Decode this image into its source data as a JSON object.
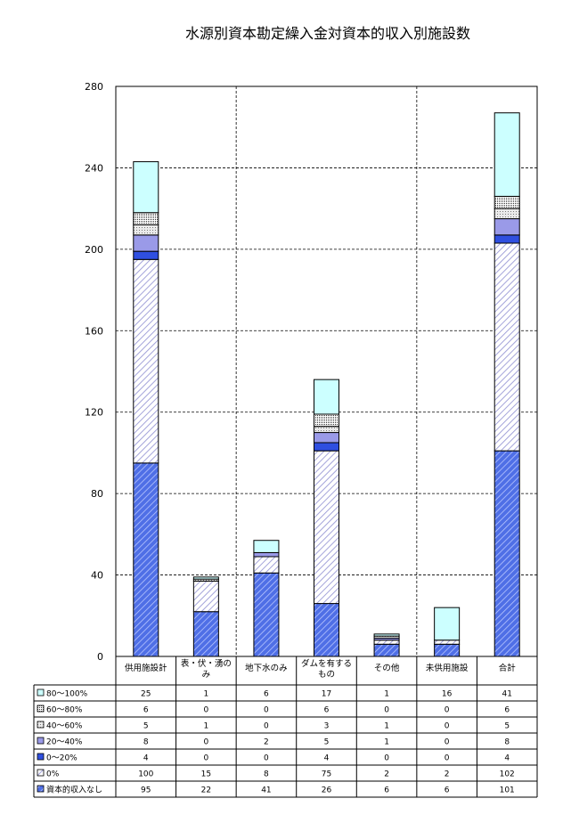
{
  "chart_data": {
    "type": "bar",
    "stacked": true,
    "title": "水源別資本勘定繰入金対資本的収入別施設数",
    "ylim": [
      0,
      280
    ],
    "yticks": [
      0,
      40,
      80,
      120,
      160,
      200,
      240,
      280
    ],
    "grid": "dashed",
    "categories": [
      [
        "供用施設計"
      ],
      [
        "表・伏・湧の",
        "み"
      ],
      [
        "地下水のみ"
      ],
      [
        "ダムを有する",
        "もの"
      ],
      [
        "その他"
      ],
      [
        "未供用施設"
      ],
      [
        "合計"
      ]
    ],
    "series": [
      {
        "name": "資本的収入なし",
        "key": "blue-hatch",
        "values": [
          95,
          22,
          41,
          26,
          6,
          6,
          101
        ]
      },
      {
        "name": "0%",
        "key": "lavender-hatch",
        "values": [
          100,
          15,
          8,
          75,
          2,
          2,
          102
        ]
      },
      {
        "name": "0～20%",
        "key": "blue",
        "values": [
          4,
          0,
          0,
          4,
          0,
          0,
          4
        ]
      },
      {
        "name": "20～40%",
        "key": "lavender",
        "values": [
          8,
          0,
          2,
          5,
          1,
          0,
          8
        ]
      },
      {
        "name": "40～60%",
        "key": "dotted-light",
        "values": [
          5,
          1,
          0,
          3,
          1,
          0,
          5
        ]
      },
      {
        "name": "60～80%",
        "key": "dotted-dense",
        "values": [
          6,
          0,
          0,
          6,
          0,
          0,
          6
        ]
      },
      {
        "name": "80～100%",
        "key": "cyan",
        "values": [
          25,
          1,
          6,
          17,
          1,
          16,
          41
        ]
      }
    ],
    "table_order": [
      "80～100%",
      "60～80%",
      "40～60%",
      "20～40%",
      "0～20%",
      "0%",
      "資本的収入なし"
    ]
  }
}
